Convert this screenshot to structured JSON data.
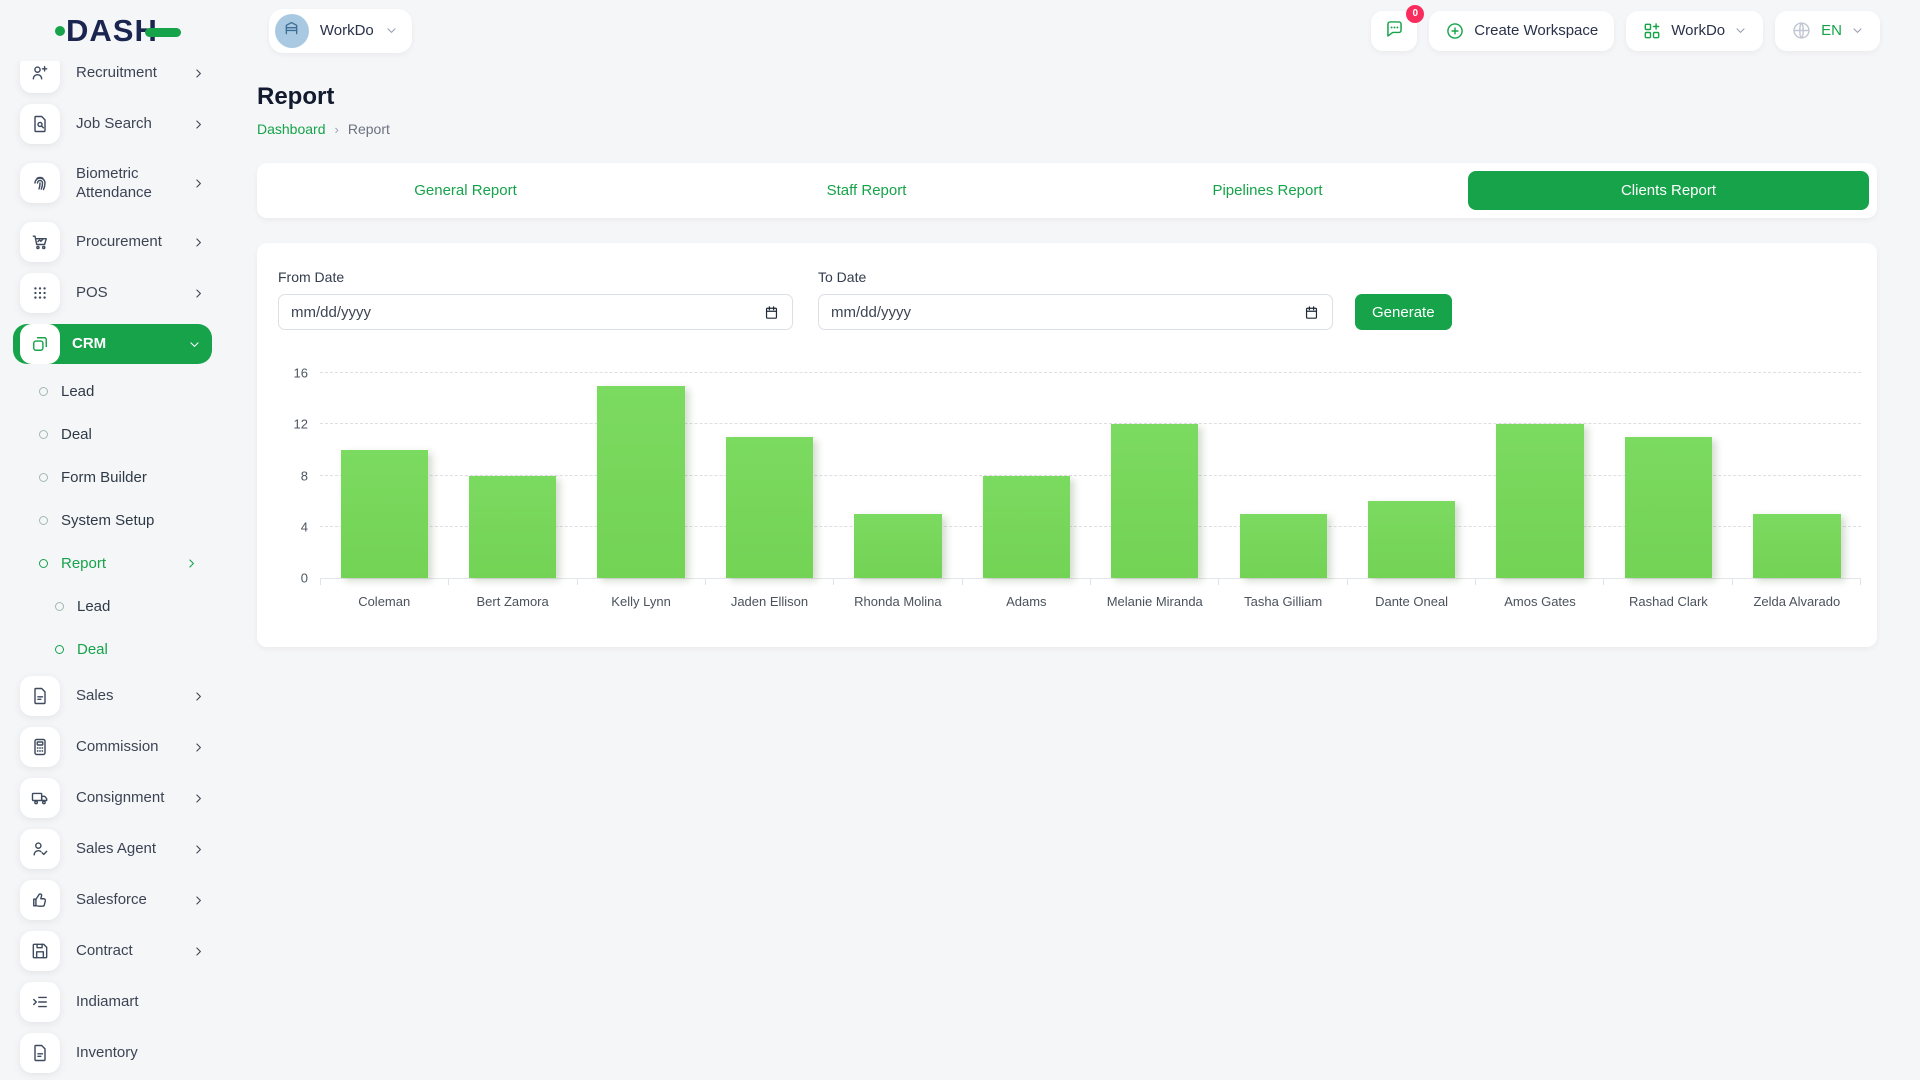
{
  "brand": {
    "logo": "DASH"
  },
  "topbar": {
    "workspace_pill": {
      "label": "WorkDo",
      "icon": "building-icon"
    },
    "messages": {
      "icon": "chat-bubble-icon",
      "badge": "0"
    },
    "create_workspace": {
      "label": "Create Workspace",
      "icon": "plus-circle-icon"
    },
    "app_menu": {
      "label": "WorkDo",
      "icon": "grid-plus-icon"
    },
    "language": {
      "label": "EN",
      "icon": "globe-icon"
    }
  },
  "sidebar": {
    "items": [
      {
        "type": "item",
        "label": "Recruitment",
        "icon": "user-plus-icon",
        "chevron": "right"
      },
      {
        "type": "item",
        "label": "Job Search",
        "icon": "document-search-icon",
        "chevron": "right"
      },
      {
        "type": "item",
        "label": "Biometric Attendance",
        "icon": "fingerprint-icon",
        "chevron": "right",
        "twoline": true
      },
      {
        "type": "item",
        "label": "Procurement",
        "icon": "cart-icon",
        "chevron": "right"
      },
      {
        "type": "item",
        "label": "POS",
        "icon": "grid-dots-icon",
        "chevron": "right"
      },
      {
        "type": "item",
        "label": "CRM",
        "icon": "copy-icon",
        "chevron": "down",
        "active": true
      },
      {
        "type": "sub",
        "label": "Lead"
      },
      {
        "type": "sub",
        "label": "Deal"
      },
      {
        "type": "sub",
        "label": "Form Builder"
      },
      {
        "type": "sub",
        "label": "System Setup"
      },
      {
        "type": "sub",
        "label": "Report",
        "active": true,
        "chevron": "right"
      },
      {
        "type": "subsub",
        "label": "Lead"
      },
      {
        "type": "subsub",
        "label": "Deal",
        "active": true
      },
      {
        "type": "item",
        "label": "Sales",
        "icon": "document-icon",
        "chevron": "right"
      },
      {
        "type": "item",
        "label": "Commission",
        "icon": "calculator-icon",
        "chevron": "right"
      },
      {
        "type": "item",
        "label": "Consignment",
        "icon": "truck-icon",
        "chevron": "right"
      },
      {
        "type": "item",
        "label": "Sales Agent",
        "icon": "user-check-icon",
        "chevron": "right"
      },
      {
        "type": "item",
        "label": "Salesforce",
        "icon": "thumbs-up-icon",
        "chevron": "right"
      },
      {
        "type": "item",
        "label": "Contract",
        "icon": "floppy-icon",
        "chevron": "right"
      },
      {
        "type": "item",
        "label": "Indiamart",
        "icon": "list-indent-icon"
      },
      {
        "type": "item",
        "label": "Inventory",
        "icon": "document-icon"
      },
      {
        "type": "item",
        "label": "",
        "icon": "document-icon"
      }
    ]
  },
  "page": {
    "title": "Report",
    "breadcrumb": {
      "home": "Dashboard",
      "separator": "›",
      "current": "Report"
    }
  },
  "tabs": [
    {
      "label": "General Report",
      "active": false
    },
    {
      "label": "Staff Report",
      "active": false
    },
    {
      "label": "Pipelines Report",
      "active": false
    },
    {
      "label": "Clients Report",
      "active": true
    }
  ],
  "filters": {
    "from_date": {
      "label": "From Date",
      "placeholder": "mm/dd/yyyy"
    },
    "to_date": {
      "label": "To Date",
      "placeholder": "mm/dd/yyyy"
    },
    "generate_label": "Generate"
  },
  "chart_data": {
    "type": "bar",
    "title": "",
    "xlabel": "",
    "ylabel": "",
    "categories": [
      "Coleman",
      "Bert Zamora",
      "Kelly Lynn",
      "Jaden Ellison",
      "Rhonda Molina",
      "Adams",
      "Melanie Miranda",
      "Tasha Gilliam",
      "Dante Oneal",
      "Amos Gates",
      "Rashad Clark",
      "Zelda Alvarado"
    ],
    "values": [
      10,
      8,
      15,
      11,
      5,
      8,
      12,
      5,
      6,
      12,
      11,
      5
    ],
    "ylim": [
      0,
      16
    ],
    "yticks": [
      0,
      4,
      8,
      12,
      16
    ],
    "grid": "horizontal-dashed",
    "legend": "none",
    "bar_color": "#77d65b"
  },
  "colors": {
    "accent_green": "#16a34a",
    "bar_green": "#77d65b",
    "badge_pink": "#fa2c5e",
    "text_dark": "#1b2650",
    "text_muted": "#6b7280",
    "page_bg": "#f5f6f8"
  }
}
